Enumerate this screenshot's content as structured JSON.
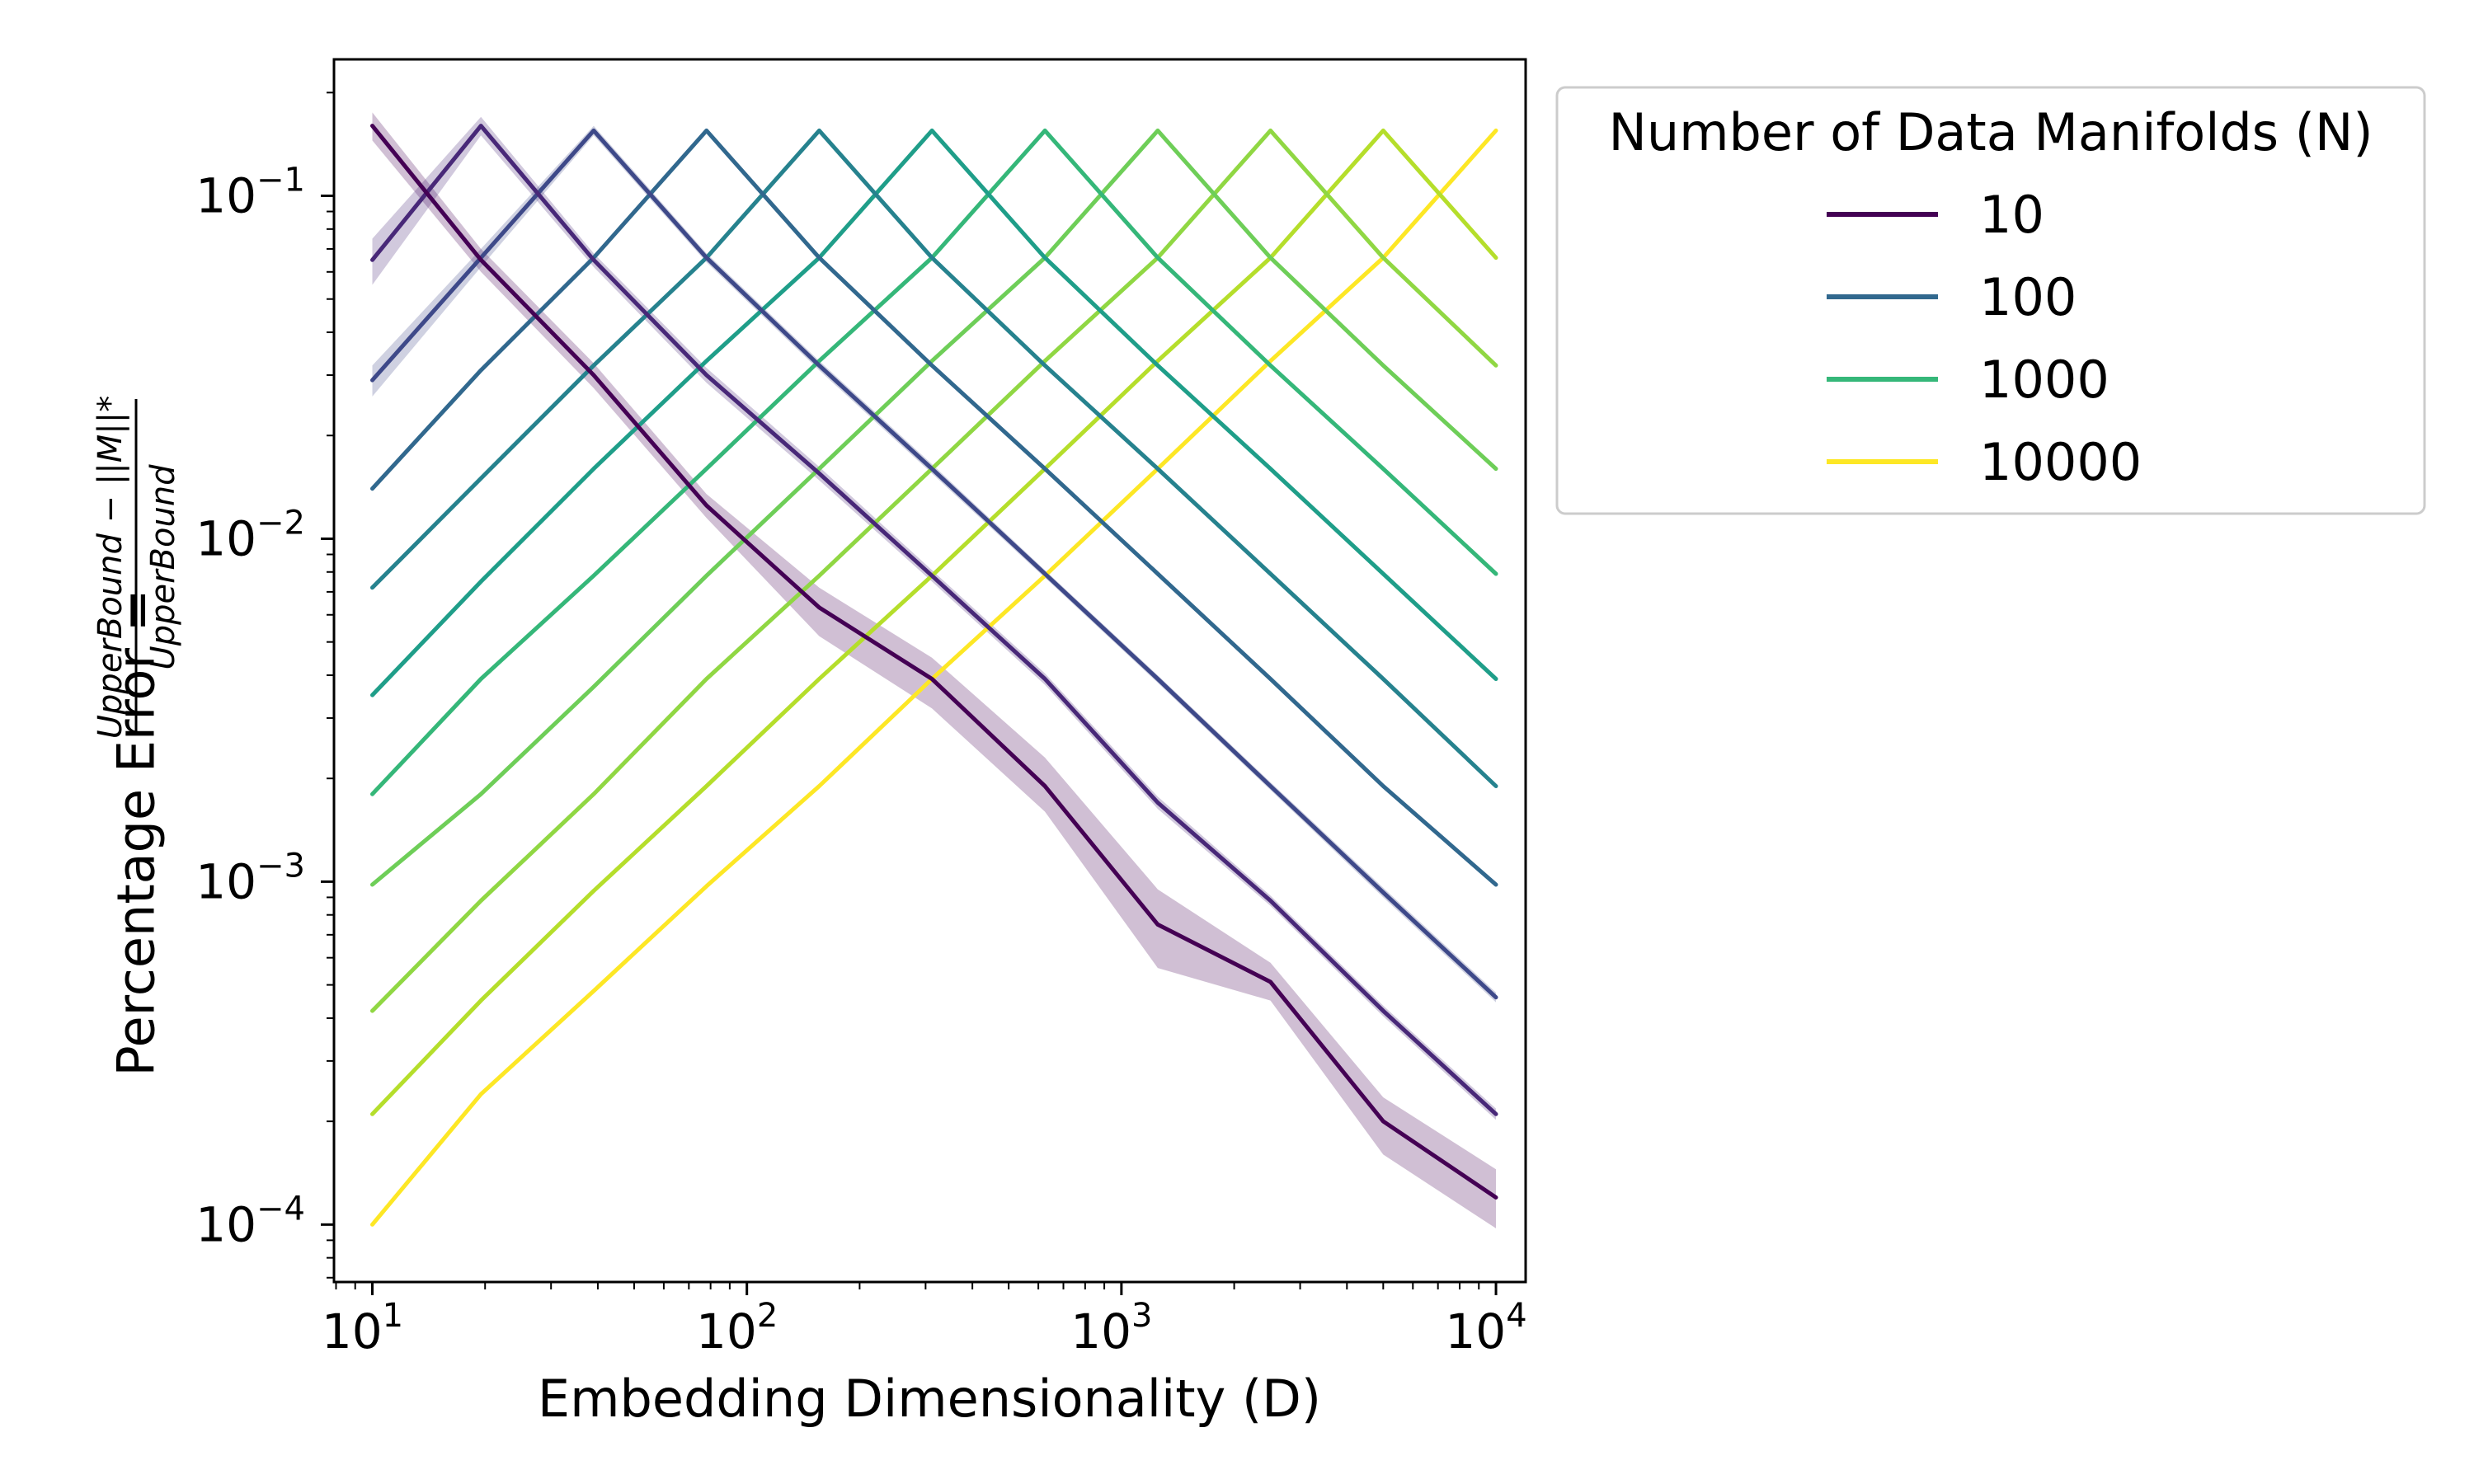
{
  "chart_data": {
    "type": "line",
    "xlabel": "Embedding Dimensionality (D)",
    "ylabel": {
      "main": "Percentage Error = ",
      "numerator": "UpperBound − ||M||*",
      "denominator": "UpperBound"
    },
    "xscale": "log",
    "yscale": "log",
    "xlim": [
      7.9,
      12000
    ],
    "ylim": [
      6.8e-05,
      0.25
    ],
    "x_ticks": [
      {
        "value": 10,
        "base": "10",
        "exp": "1"
      },
      {
        "value": 100,
        "base": "10",
        "exp": "2"
      },
      {
        "value": 1000,
        "base": "10",
        "exp": "3"
      },
      {
        "value": 10000,
        "base": "10",
        "exp": "4"
      }
    ],
    "y_ticks": [
      {
        "value": 0.0001,
        "base": "10",
        "exp": "−4"
      },
      {
        "value": 0.001,
        "base": "10",
        "exp": "−3"
      },
      {
        "value": 0.01,
        "base": "10",
        "exp": "−2"
      },
      {
        "value": 0.1,
        "base": "10",
        "exp": "−1"
      }
    ],
    "grid": false,
    "legend": {
      "title": "Number of Data Manifolds (N)",
      "placement": "outside-right",
      "entries": [
        {
          "label": "10",
          "color": "#440154"
        },
        {
          "label": "100",
          "color": "#31688e"
        },
        {
          "label": "1000",
          "color": "#35b779"
        },
        {
          "label": "10000",
          "color": "#fde725"
        }
      ]
    },
    "x": [
      10,
      19.5,
      39,
      78,
      156,
      312,
      625,
      1250,
      2500,
      5000,
      10000
    ],
    "series": [
      {
        "name": "10",
        "color": "#440154",
        "values": [
          0.16,
          0.065,
          0.03,
          0.0125,
          0.0063,
          0.0039,
          0.0019,
          0.00075,
          0.00051,
          0.0002,
          0.00012
        ],
        "lower": [
          0.145,
          0.06,
          0.0275,
          0.0115,
          0.0052,
          0.0032,
          0.0016,
          0.00056,
          0.00045,
          0.00016,
          9.75e-05
        ],
        "upper": [
          0.175,
          0.07,
          0.0325,
          0.0135,
          0.0072,
          0.0045,
          0.0023,
          0.00095,
          0.00058,
          0.000235,
          0.000145
        ]
      },
      {
        "name": "",
        "color": "#482878",
        "values": [
          0.065,
          0.16,
          0.065,
          0.03,
          0.0155,
          0.0078,
          0.0039,
          0.0017,
          0.00088,
          0.00042,
          0.00021
        ],
        "lower": [
          0.055,
          0.15,
          0.062,
          0.0285,
          0.0148,
          0.0075,
          0.00375,
          0.00163,
          0.00085,
          0.000405,
          0.000202
        ],
        "upper": [
          0.075,
          0.17,
          0.068,
          0.0315,
          0.0162,
          0.0081,
          0.00405,
          0.00177,
          0.00091,
          0.000435,
          0.000218
        ]
      },
      {
        "name": "",
        "color": "#3e4989",
        "values": [
          0.029,
          0.066,
          0.155,
          0.066,
          0.032,
          0.016,
          0.0079,
          0.0039,
          0.0019,
          0.00093,
          0.00046
        ],
        "lower": [
          0.026,
          0.062,
          0.15,
          0.064,
          0.031,
          0.0155,
          0.0077,
          0.0038,
          0.00185,
          0.0009,
          0.000445
        ],
        "upper": [
          0.032,
          0.07,
          0.16,
          0.068,
          0.033,
          0.0165,
          0.0081,
          0.004,
          0.00195,
          0.00096,
          0.000475
        ]
      },
      {
        "name": "100",
        "color": "#31688e",
        "values": [
          0.014,
          0.031,
          0.066,
          0.155,
          0.066,
          0.032,
          0.016,
          0.0079,
          0.0039,
          0.0019,
          0.00098
        ]
      },
      {
        "name": "",
        "color": "#26828e",
        "values": [
          0.0072,
          0.015,
          0.032,
          0.066,
          0.155,
          0.066,
          0.032,
          0.016,
          0.0079,
          0.0039,
          0.0019
        ]
      },
      {
        "name": "",
        "color": "#1f9e89",
        "values": [
          0.0035,
          0.0075,
          0.016,
          0.033,
          0.066,
          0.155,
          0.066,
          0.032,
          0.016,
          0.0079,
          0.0039
        ]
      },
      {
        "name": "1000",
        "color": "#35b779",
        "values": [
          0.0018,
          0.0039,
          0.0078,
          0.016,
          0.033,
          0.066,
          0.155,
          0.066,
          0.032,
          0.016,
          0.0079
        ]
      },
      {
        "name": "",
        "color": "#6ece58",
        "values": [
          0.00098,
          0.0018,
          0.0037,
          0.0078,
          0.016,
          0.033,
          0.066,
          0.155,
          0.066,
          0.032,
          0.016
        ]
      },
      {
        "name": "",
        "color": "#90d743",
        "values": [
          0.00042,
          0.00088,
          0.0018,
          0.0039,
          0.0078,
          0.016,
          0.033,
          0.066,
          0.155,
          0.066,
          0.032
        ]
      },
      {
        "name": "",
        "color": "#b5de2b",
        "values": [
          0.00021,
          0.00045,
          0.00094,
          0.0019,
          0.0039,
          0.0078,
          0.016,
          0.033,
          0.066,
          0.155,
          0.066
        ]
      },
      {
        "name": "10000",
        "color": "#fde725",
        "values": [
          0.0001,
          0.00024,
          0.00048,
          0.00097,
          0.0019,
          0.0039,
          0.0078,
          0.016,
          0.033,
          0.066,
          0.155
        ]
      }
    ]
  }
}
